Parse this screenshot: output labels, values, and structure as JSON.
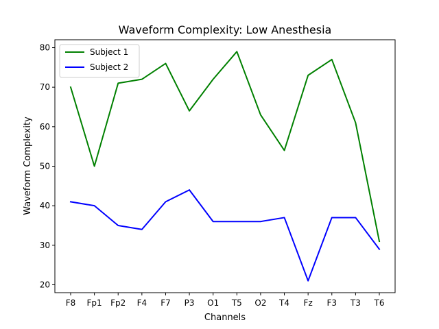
{
  "chart_data": {
    "type": "line",
    "title": "Waveform Complexity: Low Anesthesia",
    "xlabel": "Channels",
    "ylabel": "Waveform Complexity",
    "categories": [
      "F8",
      "Fp1",
      "Fp2",
      "F4",
      "F7",
      "P3",
      "O1",
      "T5",
      "O2",
      "T4",
      "Fz",
      "F3",
      "T3",
      "T6"
    ],
    "ylim": [
      18,
      82
    ],
    "yticks": [
      20,
      30,
      40,
      50,
      60,
      70,
      80
    ],
    "grid": false,
    "legend_position": "top-left",
    "series": [
      {
        "name": "Subject 1",
        "color": "#008000",
        "values": [
          70,
          50,
          71,
          72,
          76,
          64,
          72,
          79,
          63,
          54,
          73,
          77,
          61,
          31
        ]
      },
      {
        "name": "Subject 2",
        "color": "#0000ff",
        "values": [
          41,
          40,
          35,
          34,
          41,
          44,
          36,
          36,
          36,
          37,
          21,
          37,
          37,
          29
        ]
      }
    ]
  }
}
